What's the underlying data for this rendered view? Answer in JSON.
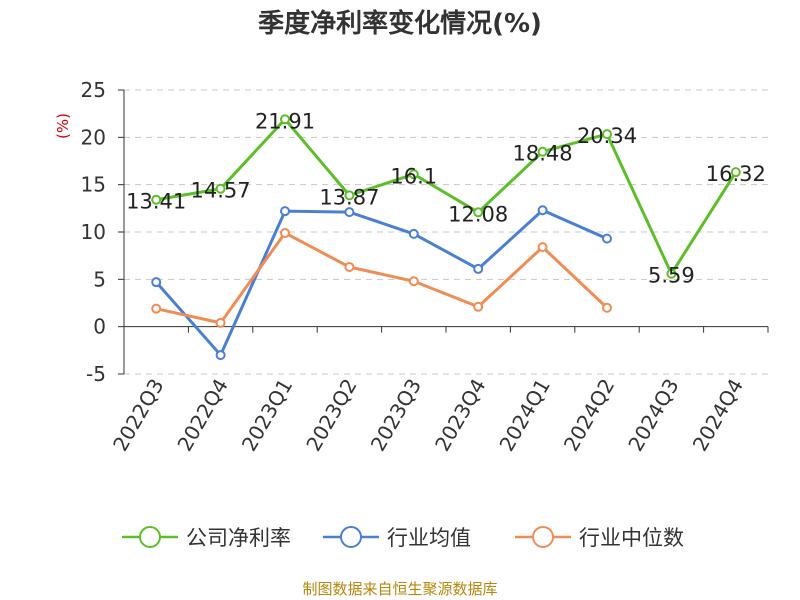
{
  "chart_data": {
    "type": "line",
    "title": "季度净利率变化情况(%)",
    "unit": "(%)",
    "categories": [
      "2022Q3",
      "2022Q4",
      "2023Q1",
      "2023Q2",
      "2023Q3",
      "2023Q4",
      "2024Q1",
      "2024Q2",
      "2024Q3",
      "2024Q4"
    ],
    "ylim": [
      -5,
      25
    ],
    "yticks": [
      -5,
      0,
      5,
      10,
      15,
      20,
      25
    ],
    "grid": true,
    "legend_position": "bottom",
    "series": [
      {
        "name": "公司净利率",
        "color": "#5cbf2a",
        "values": [
          13.41,
          14.57,
          21.91,
          13.87,
          16.1,
          12.08,
          18.48,
          20.34,
          5.59,
          16.32
        ],
        "labels": [
          "13.41",
          "14.57",
          "21.91",
          "13.87",
          "16.1",
          "12.08",
          "18.48",
          "20.34",
          "5.59",
          "16.32"
        ]
      },
      {
        "name": "行业均值",
        "color": "#4a7fd6",
        "values": [
          4.7,
          -3.0,
          12.2,
          12.1,
          9.8,
          6.1,
          12.3,
          9.3,
          null,
          null
        ]
      },
      {
        "name": "行业中位数",
        "color": "#f28c55",
        "values": [
          1.9,
          0.4,
          9.9,
          6.3,
          4.8,
          2.1,
          8.4,
          2.0,
          null,
          null
        ]
      }
    ]
  },
  "source": "制图数据来自恒生聚源数据库"
}
